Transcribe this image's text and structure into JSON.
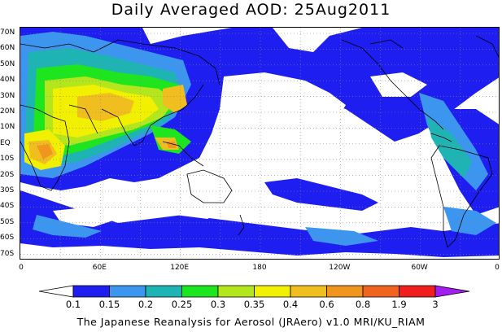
{
  "title": "Daily Averaged AOD: 25Aug2011",
  "lat_labels": [
    "70N",
    "60N",
    "50N",
    "40N",
    "30N",
    "20N",
    "10N",
    "EQ",
    "10S",
    "20S",
    "30S",
    "40S",
    "50S",
    "60S",
    "70S"
  ],
  "lon_labels": [
    "0",
    "60E",
    "120E",
    "180",
    "120W",
    "60W",
    "0"
  ],
  "colorbar": {
    "levels": [
      "0.1",
      "0.15",
      "0.2",
      "0.25",
      "0.3",
      "0.35",
      "0.4",
      "0.6",
      "0.8",
      "1.9",
      "3"
    ],
    "colors": [
      "#ffffff",
      "#1e1ef0",
      "#3c96f0",
      "#1eb4b4",
      "#1ee61e",
      "#b4e61e",
      "#f0f000",
      "#f0be1e",
      "#f0961e",
      "#f0641e",
      "#f01e1e",
      "#a01ef0"
    ]
  },
  "footer": "The Japanese Reanalysis for Aerosol (JRAero) v1.0 MRI/KU_RIAM",
  "map": {
    "variable": "AOD",
    "date": "25Aug2011",
    "colormap_colors": {
      "blue": "#1e1ef0",
      "light_blue": "#3c96f0",
      "teal": "#1eb4b4",
      "green": "#1ee61e",
      "yellow_green": "#b4e61e",
      "yellow": "#f0f000",
      "gold": "#f0be1e",
      "orange": "#f0961e",
      "dark_orange": "#f0641e"
    }
  }
}
